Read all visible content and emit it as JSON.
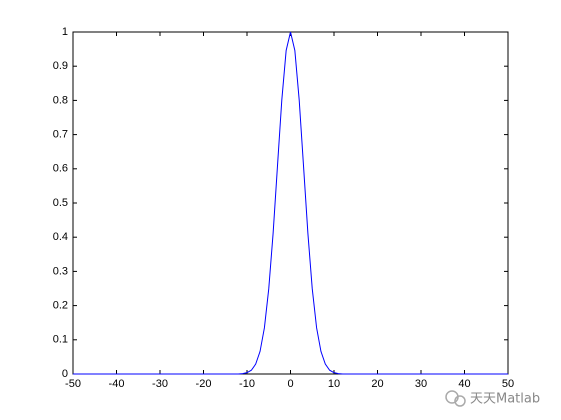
{
  "chart_data": {
    "type": "line",
    "x": [
      -50,
      -12,
      -11,
      -10,
      -9,
      -8,
      -7,
      -6,
      -5,
      -4,
      -3,
      -2,
      -1,
      0,
      1,
      2,
      3,
      4,
      5,
      6,
      7,
      8,
      9,
      10,
      11,
      12,
      50
    ],
    "series": [
      {
        "color": "#0000ff",
        "values": [
          0,
          0,
          0.001,
          0.004,
          0.011,
          0.029,
          0.066,
          0.135,
          0.249,
          0.411,
          0.607,
          0.801,
          0.946,
          1,
          0.946,
          0.801,
          0.607,
          0.411,
          0.249,
          0.135,
          0.066,
          0.029,
          0.011,
          0.004,
          0.001,
          0,
          0
        ]
      }
    ],
    "xlim": [
      -50,
      50
    ],
    "xticks": [
      -50,
      -40,
      -30,
      -20,
      -10,
      0,
      10,
      20,
      30,
      40,
      50
    ],
    "ylim": [
      0,
      1
    ],
    "yticks": [
      0,
      0.1,
      0.2,
      0.3,
      0.4,
      0.5,
      0.6,
      0.7,
      0.8,
      0.9,
      1
    ],
    "grid": false,
    "watermark": "天天Matlab"
  }
}
